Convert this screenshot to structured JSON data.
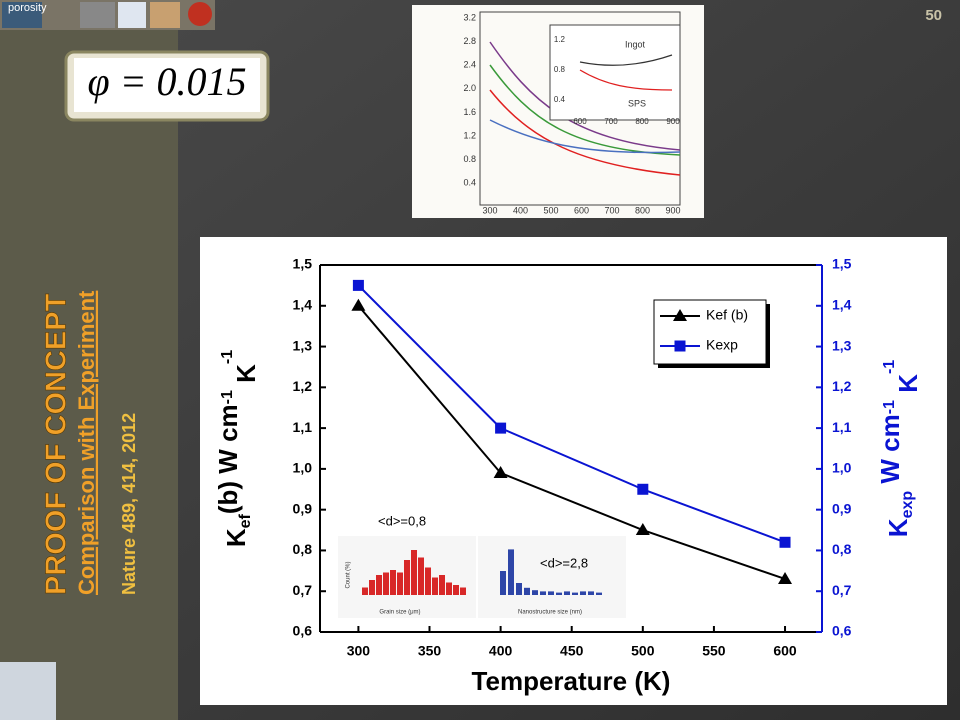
{
  "slide": {
    "number": "50",
    "title": "PROOF OF CONCEPT",
    "subtitle": "Comparison with Experiment",
    "reference": "Nature  489, 414, 2012",
    "formula": "φ = 0.015",
    "corner_caption": "porosity"
  },
  "reference_figure": {
    "yticks": [
      "3.2",
      "2.8",
      "2.4",
      "2.0",
      "1.6",
      "1.2",
      "0.8",
      "0.4"
    ],
    "xticks": [
      "300",
      "400",
      "500",
      "600",
      "700",
      "800",
      "900"
    ],
    "inset_yticks": [
      "1.2",
      "0.8",
      "0.4"
    ],
    "inset_xticks": [
      "600",
      "700",
      "800",
      "900"
    ],
    "labels": [
      "Ingot",
      "SPS"
    ]
  },
  "chart_data": {
    "type": "line",
    "x_label": "Temperature (K)",
    "y_label_parts": [
      "K",
      "ef",
      "(b)  W cm",
      "-1",
      " K",
      "-1"
    ],
    "y2_label_parts": [
      "K",
      "exp",
      "  W cm",
      "-1",
      " K",
      "-1"
    ],
    "x": [
      300,
      400,
      500,
      600
    ],
    "xlim": [
      273,
      626
    ],
    "xticks": [
      300,
      350,
      400,
      450,
      500,
      550,
      600
    ],
    "ylim": [
      0.6,
      1.5
    ],
    "yticks": [
      {
        "value": 0.6,
        "label": "0,6"
      },
      {
        "value": 0.7,
        "label": "0,7"
      },
      {
        "value": 0.8,
        "label": "0,8"
      },
      {
        "value": 0.9,
        "label": "0,9"
      },
      {
        "value": 1.0,
        "label": "1,0"
      },
      {
        "value": 1.1,
        "label": "1,1"
      },
      {
        "value": 1.2,
        "label": "1,2"
      },
      {
        "value": 1.3,
        "label": "1,3"
      },
      {
        "value": 1.4,
        "label": "1,4"
      },
      {
        "value": 1.5,
        "label": "1,5"
      }
    ],
    "y2lim": [
      0.6,
      1.5
    ],
    "y2ticks": [
      {
        "value": 0.6,
        "label": "0,6"
      },
      {
        "value": 0.7,
        "label": "0,7"
      },
      {
        "value": 0.8,
        "label": "0,8"
      },
      {
        "value": 0.9,
        "label": "0,9"
      },
      {
        "value": 1.0,
        "label": "1,0"
      },
      {
        "value": 1.1,
        "label": "1,1"
      },
      {
        "value": 1.2,
        "label": "1,2"
      },
      {
        "value": 1.3,
        "label": "1,3"
      },
      {
        "value": 1.4,
        "label": "1,4"
      },
      {
        "value": 1.5,
        "label": "1,5"
      }
    ],
    "series": [
      {
        "name": "Kef (b)",
        "color": "#000000",
        "marker": "triangle",
        "values": [
          1.4,
          0.99,
          0.85,
          0.73
        ]
      },
      {
        "name": "Kexp",
        "color": "#0a14d2",
        "marker": "square",
        "axis": "y2",
        "values": [
          1.45,
          1.1,
          0.95,
          0.82
        ]
      }
    ],
    "legend": "upper right",
    "annotations": [
      "<d>=0,8",
      "<d>=2,8"
    ],
    "inset_labels": [
      "Grain size (μm)",
      "Nanostructure size (nm)",
      "Count (%)"
    ]
  }
}
